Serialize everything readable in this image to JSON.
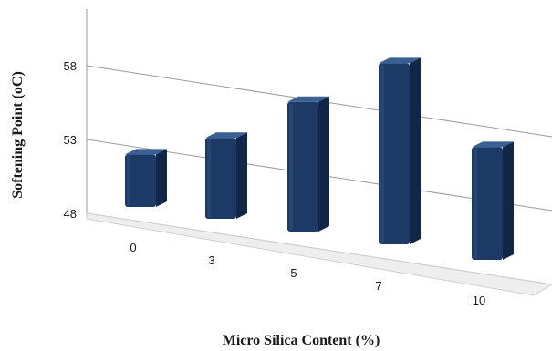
{
  "chart_data": {
    "type": "bar",
    "style": "3d-column",
    "xlabel": "Micro Silica Content (%)",
    "ylabel": "Softening Point  (oC)",
    "categories": [
      "0",
      "3",
      "5",
      "7",
      "10"
    ],
    "values": [
      50.2,
      52.0,
      55.0,
      58.0,
      53.6
    ],
    "yticks": [
      48,
      53,
      58
    ],
    "ylim": [
      48,
      62
    ],
    "grid": true,
    "legend": "none",
    "colors": {
      "bar_front": "#1d3a67",
      "bar_top": "#3a5f95",
      "bar_side": "#122747",
      "grid": "#9a9a9a",
      "floor": "#eeeeee"
    }
  }
}
